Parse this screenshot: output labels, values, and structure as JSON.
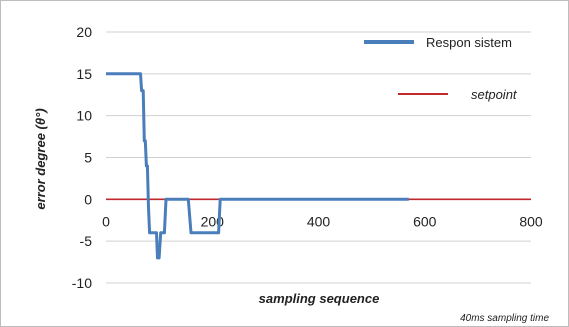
{
  "chart_data": {
    "type": "line",
    "title": "",
    "xlabel": "sampling sequence",
    "ylabel": "error degree (θ°)",
    "xlim": [
      0,
      800
    ],
    "ylim": [
      -10,
      20
    ],
    "x_ticks": [
      0,
      200,
      400,
      600,
      800
    ],
    "y_ticks": [
      -10,
      -5,
      0,
      5,
      10,
      15,
      20
    ],
    "grid": "horizontal",
    "legend_position": "top-right",
    "annotation": "40ms sampling time",
    "series": [
      {
        "name": "Respon sistem",
        "color": "#4a7ebb",
        "x": [
          0,
          65,
          67,
          70,
          72,
          74,
          76,
          78,
          80,
          82,
          84,
          86,
          95,
          97,
          100,
          103,
          105,
          110,
          113,
          116,
          120,
          155,
          160,
          162,
          212,
          215,
          218,
          570
        ],
        "y": [
          15,
          15,
          13,
          13,
          7,
          7,
          4,
          4,
          -1,
          -4,
          -4,
          -4,
          -4,
          -7,
          -7,
          -4,
          -4,
          -4,
          0,
          0,
          0,
          0,
          -4,
          -4,
          -4,
          0,
          0,
          0
        ]
      },
      {
        "name": "setpoint",
        "color": "#c0282d",
        "x": [
          0,
          800
        ],
        "y": [
          0,
          0
        ]
      }
    ]
  }
}
